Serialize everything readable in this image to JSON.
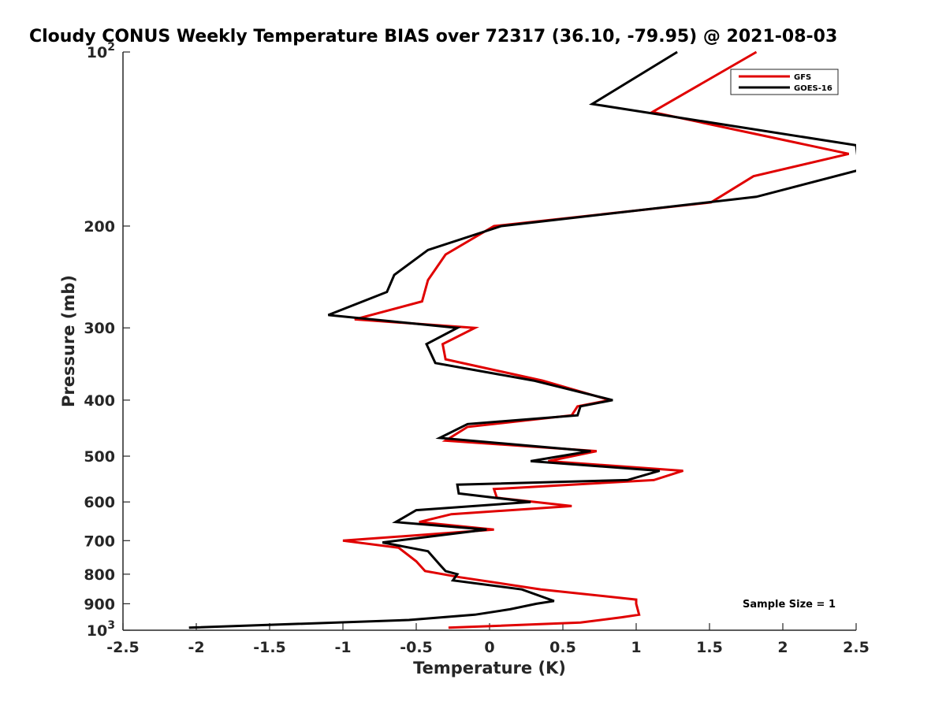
{
  "chart_data": {
    "type": "line",
    "title": "Cloudy CONUS Weekly Temperature BIAS over 72317 (36.10, -79.95) @ 2021-08-03",
    "xlabel": "Temperature (K)",
    "ylabel": "Pressure (mb)",
    "xlim": [
      -2.5,
      2.5
    ],
    "ylim": [
      100,
      1000
    ],
    "y_scale": "log",
    "y_reversed": true,
    "x_ticks": [
      -2.5,
      -2,
      -1.5,
      -1,
      -0.5,
      0,
      0.5,
      1,
      1.5,
      2,
      2.5
    ],
    "x_tick_labels": [
      "-2.5",
      "-2",
      "-1.5",
      "-1",
      "-0.5",
      "0",
      "0.5",
      "1",
      "1.5",
      "2",
      "2.5"
    ],
    "y_ticks": [
      200,
      300,
      400,
      500,
      600,
      700,
      800,
      900
    ],
    "y_tick_labels": [
      "200",
      "300",
      "400",
      "500",
      "600",
      "700",
      "800",
      "900"
    ],
    "y_extreme_labels": {
      "top": {
        "base": "10",
        "exp": "2"
      },
      "bottom": {
        "base": "10",
        "exp": "3"
      }
    },
    "grid": false,
    "legend_position": "top-right",
    "annotation": "Sample Size = 1",
    "series": [
      {
        "name": "GFS",
        "color": "#e00000",
        "points": [
          [
            1.82,
            100
          ],
          [
            1.11,
            127
          ],
          [
            2.45,
            150
          ],
          [
            1.8,
            164
          ],
          [
            1.51,
            182
          ],
          [
            0.03,
            200
          ],
          [
            -0.3,
            224
          ],
          [
            -0.42,
            248
          ],
          [
            -0.46,
            270
          ],
          [
            -0.92,
            290
          ],
          [
            -0.1,
            300
          ],
          [
            -0.32,
            320
          ],
          [
            -0.3,
            340
          ],
          [
            0.36,
            370
          ],
          [
            0.82,
            400
          ],
          [
            0.6,
            410
          ],
          [
            0.56,
            425
          ],
          [
            -0.15,
            445
          ],
          [
            -0.3,
            470
          ],
          [
            0.73,
            490
          ],
          [
            0.4,
            510
          ],
          [
            1.32,
            530
          ],
          [
            1.12,
            550
          ],
          [
            0.03,
            570
          ],
          [
            0.05,
            590
          ],
          [
            0.56,
            610
          ],
          [
            -0.26,
            630
          ],
          [
            -0.48,
            650
          ],
          [
            0.03,
            670
          ],
          [
            -1.0,
            700
          ],
          [
            -0.62,
            720
          ],
          [
            -0.5,
            760
          ],
          [
            -0.44,
            790
          ],
          [
            -0.2,
            810
          ],
          [
            0.35,
            850
          ],
          [
            1.0,
            885
          ],
          [
            1.0,
            900
          ],
          [
            1.02,
            940
          ],
          [
            0.9,
            950
          ],
          [
            0.62,
            970
          ],
          [
            -0.28,
            990
          ]
        ]
      },
      {
        "name": "GOES-16",
        "color": "#000000",
        "points": [
          [
            1.28,
            100
          ],
          [
            0.7,
            123
          ],
          [
            2.5,
            145
          ],
          [
            2.52,
            160
          ],
          [
            1.82,
            178
          ],
          [
            0.08,
            200
          ],
          [
            -0.42,
            220
          ],
          [
            -0.65,
            243
          ],
          [
            -0.7,
            260
          ],
          [
            -1.1,
            285
          ],
          [
            -0.22,
            300
          ],
          [
            -0.43,
            320
          ],
          [
            -0.37,
            345
          ],
          [
            0.3,
            370
          ],
          [
            0.84,
            400
          ],
          [
            0.62,
            410
          ],
          [
            0.6,
            425
          ],
          [
            -0.15,
            440
          ],
          [
            -0.34,
            465
          ],
          [
            0.69,
            490
          ],
          [
            0.28,
            510
          ],
          [
            1.16,
            530
          ],
          [
            0.94,
            550
          ],
          [
            -0.22,
            560
          ],
          [
            -0.21,
            580
          ],
          [
            0.28,
            600
          ],
          [
            -0.5,
            620
          ],
          [
            -0.64,
            650
          ],
          [
            -0.02,
            670
          ],
          [
            -0.73,
            705
          ],
          [
            -0.42,
            730
          ],
          [
            -0.34,
            770
          ],
          [
            -0.3,
            790
          ],
          [
            -0.22,
            800
          ],
          [
            -0.25,
            820
          ],
          [
            0.22,
            850
          ],
          [
            0.44,
            890
          ],
          [
            0.32,
            900
          ],
          [
            0.14,
            920
          ],
          [
            -0.1,
            940
          ],
          [
            -0.55,
            960
          ],
          [
            -2.05,
            990
          ]
        ]
      }
    ]
  }
}
